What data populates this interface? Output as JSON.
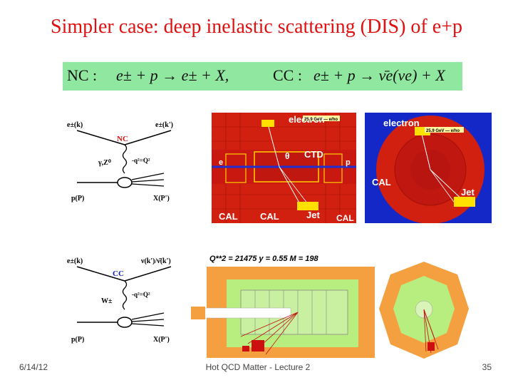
{
  "title": "Simpler case: deep inelastic scattering (DIS) of e+p",
  "formula": {
    "nc_label": "NC :",
    "nc_reaction": "e± + p → e± + X,",
    "cc_label": "CC :",
    "cc_reaction": "e± + p → ν̄e(νe) + X"
  },
  "nc_diagram": {
    "incoming_lepton": "e±(k)",
    "outgoing_lepton": "e±(k')",
    "vertex_label": "NC",
    "boson": "γ,Z⁰",
    "momentum_transfer": "-q²=Q²",
    "proton": "p(P)",
    "hadrons": "X(P')"
  },
  "cc_diagram": {
    "incoming_lepton": "e±(k)",
    "outgoing_neutrino": "ν(k')/ν̄(k')",
    "vertex_label": "CC",
    "boson": "W±",
    "momentum_transfer": "-q²=Q²",
    "proton": "p(P)",
    "hadrons": "X(P')"
  },
  "event_side": {
    "electron": "electron",
    "energy_box": "25.9 GeV — e/ho",
    "theta": "θ",
    "ctd": "CTD",
    "beam_e": "e",
    "beam_p": "p",
    "cal_1": "CAL",
    "cal_2": "CAL",
    "jet": "Jet",
    "cal_3": "CAL"
  },
  "event_end": {
    "electron": "electron",
    "energy_box": "25.9 GeV — e/ho",
    "cal": "CAL",
    "jet": "Jet"
  },
  "cc_event_header": "Q**2 = 21475   y = 0.55   M = 198",
  "footer": {
    "date": "6/14/12",
    "lecture": "Hot QCD Matter - Lecture 2",
    "page": "35"
  },
  "colors": {
    "title": "#e01010",
    "formula_bg": "#90e8a0",
    "detector_red": "#cc1010",
    "detector_yellow": "#ffe000",
    "event_green": "#b8ee80",
    "event_orange": "#f4a040"
  }
}
